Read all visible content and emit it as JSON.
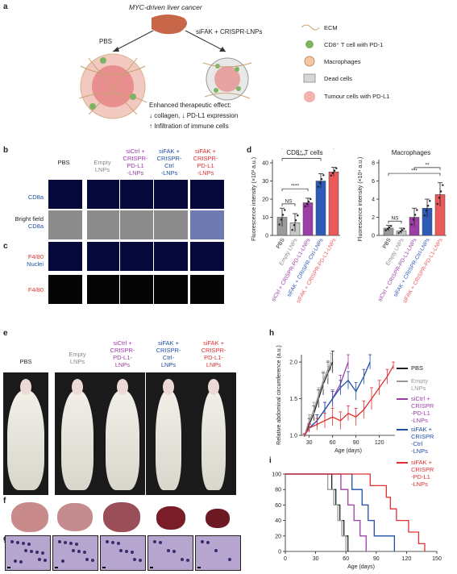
{
  "panels": {
    "a": "a",
    "b": "b",
    "c": "c",
    "d": "d",
    "e": "e",
    "f": "f",
    "g": "g",
    "h": "h",
    "i": "i"
  },
  "a": {
    "title": "MYC-driven liver cancer",
    "left_arrow": "PBS",
    "right_arrow": "siFAK + CRISPR-LNPs",
    "effect_line1": "Enhanced therapeutic effect:",
    "effect_line2": "↓ collagen, ↓ PD-L1 expression",
    "effect_line3": "↑ Infiltration of immune cells",
    "legend": [
      "ECM",
      "CD8⁺ T cell with PD-1",
      "Macrophages",
      "Dead cells",
      "Tumour cells with PD-L1"
    ]
  },
  "groups": [
    {
      "lines": [
        "PBS"
      ],
      "color": "#222222"
    },
    {
      "lines": [
        "Empty",
        "LNPs"
      ],
      "color": "#888888"
    },
    {
      "lines": [
        "siCtrl +",
        "CRISPR-",
        "PD-L1",
        "-LNPs"
      ],
      "color": "#9c3ea6"
    },
    {
      "lines": [
        "siFAK +",
        "CRISPR-",
        "Ctrl",
        "-LNPs"
      ],
      "color": "#1f4fa5"
    },
    {
      "lines": [
        "siFAK +",
        "CRISPR-",
        "PD-L1",
        "-LNPs"
      ],
      "color": "#e03030"
    }
  ],
  "b": {
    "row1": "CD8a",
    "row2a": "Bright field",
    "row2b": "CD8a"
  },
  "c": {
    "row1a": "F4/80",
    "row1b": "Nuclei",
    "row2": "F4/80"
  },
  "e_groups": [
    {
      "lines": [
        "PBS"
      ]
    },
    {
      "lines": [
        "Empty",
        "LNPs"
      ]
    },
    {
      "lines": [
        "siCtrl +",
        "CRISPR-",
        "PD-L1-",
        "LNPs"
      ]
    },
    {
      "lines": [
        "siFAK +",
        "CRISPR-",
        "Ctrl-",
        "LNPs"
      ]
    },
    {
      "lines": [
        "siFAK +",
        "CRISPR-",
        "PD-L1-",
        "LNPs"
      ]
    }
  ],
  "legend_hi": [
    {
      "lines": [
        "PBS"
      ],
      "color": "#222222"
    },
    {
      "lines": [
        "Empty",
        "LNPs"
      ],
      "color": "#999999"
    },
    {
      "lines": [
        "siCtrl +",
        "CRISPR",
        "-PD-L1",
        "-LNPs"
      ],
      "color": "#9c3ea6"
    },
    {
      "lines": [
        "siFAK +",
        "CRISPR",
        "-Ctrl",
        "-LNPs"
      ],
      "color": "#1f4fa5"
    },
    {
      "lines": [
        "siFAK +",
        "CRISPR",
        "-PD-L1",
        "-LNPs"
      ],
      "color": "#e03030"
    }
  ],
  "chart_data": [
    {
      "id": "d-cd8",
      "type": "bar",
      "title": "CD8⁺ T cells",
      "ylabel": "Fluorescence intensity (×10³ a.u.)",
      "ylim": [
        0,
        40
      ],
      "yticks": [
        0,
        10,
        20,
        30,
        40
      ],
      "categories": [
        "PBS",
        "Empty LNPs",
        "siCtrl + CRISPR-PD-L1-LNPs",
        "siFAK + CRISPR-Ctrl-LNPs",
        "siFAK + CRISPR-PD-L1-LNPs"
      ],
      "colors": [
        "#9a9a9a",
        "#c8c8c8",
        "#9c3ea6",
        "#2e5bb8",
        "#ea5a5a"
      ],
      "values": [
        10,
        7,
        18,
        30,
        35
      ],
      "errors": [
        5,
        5,
        2.5,
        4,
        2.5
      ],
      "significance": [
        {
          "from": 0,
          "to": 1,
          "label": "NS"
        },
        {
          "from": 0,
          "to": 2,
          "label": "****"
        },
        {
          "from": 0,
          "to": 3,
          "label": "****"
        },
        {
          "from": 0,
          "to": 4,
          "label": "****"
        },
        {
          "from": 3,
          "to": 4,
          "label": "**"
        }
      ]
    },
    {
      "id": "d-mac",
      "type": "bar",
      "title": "Macrophages",
      "ylabel": "Fluorescence intensity (×10⁴ a.u.)",
      "ylim": [
        0,
        8
      ],
      "yticks": [
        0,
        2,
        4,
        6,
        8
      ],
      "categories": [
        "PBS",
        "Empty LNPs",
        "siCtrl + CRISPR-PD-L1-LNPs",
        "siFAK + CRISPR-Ctrl-LNPs",
        "siFAK + CRISPR-PD-L1-LNPs"
      ],
      "colors": [
        "#9a9a9a",
        "#c8c8c8",
        "#9c3ea6",
        "#2e5bb8",
        "#ea5a5a"
      ],
      "values": [
        0.8,
        0.5,
        2,
        3,
        4.5
      ],
      "errors": [
        0.3,
        0.3,
        1,
        1,
        1.3
      ],
      "significance": [
        {
          "from": 0,
          "to": 1,
          "label": "NS"
        },
        {
          "from": 0,
          "to": 4,
          "label": "***"
        },
        {
          "from": 2,
          "to": 4,
          "label": "**"
        }
      ]
    },
    {
      "id": "h",
      "type": "line",
      "ylabel": "Relative abdominal circumference (a.u.)",
      "xlabel": "Age (days)",
      "xlim": [
        20,
        140
      ],
      "ylim": [
        1.0,
        2.1
      ],
      "xticks": [
        30,
        60,
        90,
        120
      ],
      "yticks": [
        1.0,
        1.5,
        2.0
      ],
      "series": [
        {
          "name": "PBS",
          "color": "#222222",
          "x": [
            24,
            30,
            36,
            42,
            48,
            54,
            60
          ],
          "y": [
            1.0,
            1.15,
            1.3,
            1.5,
            1.7,
            1.85,
            2.0
          ],
          "err": [
            0.02,
            0.08,
            0.1,
            0.12,
            0.15,
            0.15,
            0.15
          ]
        },
        {
          "name": "Empty LNPs",
          "color": "#999999",
          "x": [
            24,
            30,
            36,
            42,
            48,
            54,
            58
          ],
          "y": [
            1.0,
            1.2,
            1.35,
            1.55,
            1.75,
            1.9,
            2.0
          ],
          "err": [
            0.02,
            0.08,
            0.1,
            0.1,
            0.12,
            0.12,
            0.12
          ]
        },
        {
          "name": "siCtrl + CRISPR-PD-L1-LNPs",
          "color": "#9c3ea6",
          "x": [
            24,
            30,
            40,
            50,
            60,
            70,
            80
          ],
          "y": [
            1.0,
            1.1,
            1.2,
            1.35,
            1.5,
            1.7,
            2.0
          ],
          "err": [
            0.02,
            0.06,
            0.08,
            0.1,
            0.12,
            0.12,
            0.1
          ]
        },
        {
          "name": "siFAK + CRISPR-Ctrl-LNPs",
          "color": "#1f4fa5",
          "x": [
            24,
            30,
            40,
            50,
            60,
            70,
            80,
            90,
            100,
            108
          ],
          "y": [
            1.0,
            1.1,
            1.2,
            1.35,
            1.5,
            1.65,
            1.75,
            1.6,
            1.8,
            2.0
          ],
          "err": [
            0.02,
            0.05,
            0.08,
            0.1,
            0.1,
            0.1,
            0.12,
            0.12,
            0.1,
            0.1
          ]
        },
        {
          "name": "siFAK + CRISPR-PD-L1-LNPs",
          "color": "#e03030",
          "x": [
            24,
            30,
            40,
            50,
            60,
            70,
            80,
            90,
            100,
            110,
            120,
            130,
            138
          ],
          "y": [
            1.0,
            1.1,
            1.15,
            1.2,
            1.25,
            1.2,
            1.3,
            1.25,
            1.35,
            1.5,
            1.65,
            1.8,
            1.95
          ],
          "err": [
            0.02,
            0.05,
            0.08,
            0.1,
            0.12,
            0.12,
            0.1,
            0.12,
            0.12,
            0.15,
            0.1,
            0.1,
            0.05
          ]
        }
      ]
    },
    {
      "id": "i",
      "type": "line",
      "ylabel": "Percent survival",
      "xlabel": "Age (days)",
      "xlim": [
        0,
        150
      ],
      "ylim": [
        0,
        100
      ],
      "xticks": [
        0,
        30,
        60,
        90,
        120,
        150
      ],
      "yticks": [
        0,
        20,
        40,
        60,
        80,
        100
      ],
      "series": [
        {
          "name": "PBS",
          "color": "#222222",
          "x": [
            0,
            46,
            46,
            50,
            50,
            54,
            54,
            58,
            58,
            62,
            62
          ],
          "y": [
            100,
            100,
            80,
            80,
            60,
            60,
            40,
            40,
            20,
            20,
            0
          ]
        },
        {
          "name": "Empty LNPs",
          "color": "#999999",
          "x": [
            0,
            42,
            42,
            48,
            48,
            52,
            52,
            56,
            56,
            60,
            60
          ],
          "y": [
            100,
            100,
            80,
            80,
            60,
            60,
            40,
            40,
            20,
            20,
            0
          ]
        },
        {
          "name": "siCtrl + CRISPR-PD-L1-LNPs",
          "color": "#9c3ea6",
          "x": [
            0,
            55,
            55,
            62,
            62,
            68,
            68,
            74,
            74,
            80,
            80
          ],
          "y": [
            100,
            100,
            80,
            80,
            60,
            60,
            40,
            40,
            20,
            20,
            0
          ]
        },
        {
          "name": "siFAK + CRISPR-Ctrl-LNPs",
          "color": "#1f4fa5",
          "x": [
            0,
            66,
            66,
            76,
            76,
            82,
            82,
            88,
            88,
            108,
            108
          ],
          "y": [
            100,
            100,
            80,
            80,
            60,
            60,
            40,
            40,
            20,
            20,
            0
          ]
        },
        {
          "name": "siFAK + CRISPR-PD-L1-LNPs",
          "color": "#e03030",
          "x": [
            0,
            84,
            84,
            100,
            100,
            104,
            104,
            110,
            110,
            122,
            122,
            132,
            132,
            138,
            138
          ],
          "y": [
            100,
            100,
            85,
            85,
            70,
            70,
            55,
            55,
            40,
            40,
            25,
            25,
            10,
            10,
            0
          ]
        }
      ]
    }
  ]
}
